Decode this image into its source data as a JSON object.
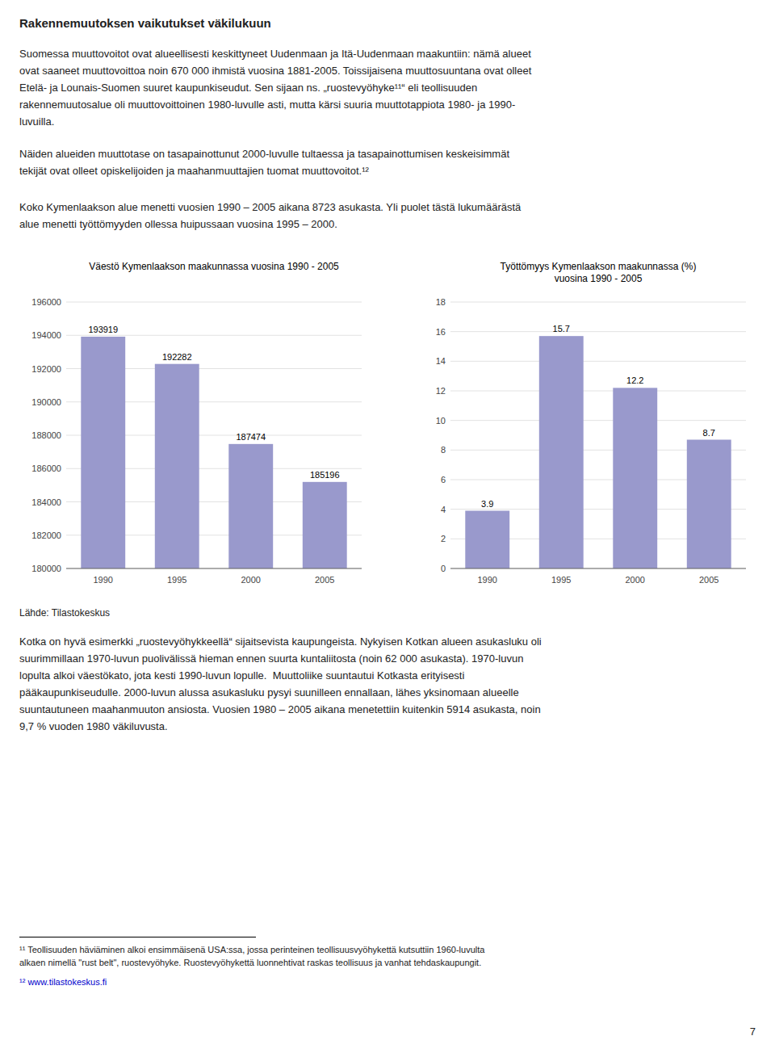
{
  "page_title": "Rakennemuutoksen vaikutukset väkilukuun",
  "paragraphs": [
    [
      "Suomessa muuttovoitot ovat alueellisesti keskittyneet Uudenmaan ja Itä-Uudenmaan maakuntiin: nämä alueet",
      "ovat saaneet muuttovoittoa noin 670 000 ihmistä vuosina 1881-2005. Toissijaisena muuttosuuntana ovat olleet",
      "Etelä- ja Lounais-Suomen suuret kaupunkiseudut. Sen sijaan ns. „ruostevyöhyke¹¹“ eli teollisuuden",
      "rakennemuutosalue oli muuttovoittoinen 1980-luvulle asti, mutta kärsi suuria muuttotappiota 1980- ja 1990-",
      "luvuilla."
    ],
    [
      "Näiden alueiden muuttotase on tasapainottunut 2000-luvulle tultaessa ja tasapainottumisen keskeisimmät",
      "tekijät ovat olleet opiskelijoiden ja maahanmuuttajien tuomat muuttovoitot.¹²"
    ],
    [
      "Koko Kymenlaakson alue menetti vuosien 1990 – 2005 aikana 8723 asukasta. Yli puolet tästä lukumäärästä",
      "alue menetti työttömyyden ollessa huipussaan vuosina 1995 – 2000."
    ],
    [
      "Kotka on hyvä esimerkki „ruostevyöhykkeellä“ sijaitsevista kaupungeista. Nykyisen Kotkan alueen asukasluku oli",
      "suurimmillaan 1970-luvun puolivälissä hieman ennen suurta kuntaliitosta (noin 62 000 asukasta). 1970-luvun",
      "lopulta alkoi väestökato, jota kesti 1990-luvun lopulle.  Muuttoliike suuntautui Kotkasta erityisesti",
      "pääkaupunkiseudulle. 2000-luvun alussa asukasluku pysyi suunilleen ennallaan, lähes yksinomaan alueelle",
      "suuntautuneen maahanmuuton ansiosta. Vuosien 1980 – 2005 aikana menetettiin kuitenkin 5914 asukasta, noin",
      "9,7 % vuoden 1980 väkiluvusta."
    ]
  ],
  "source": "Lähde: Tilastokeskus",
  "footnotes": [
    [
      "¹¹ Teollisuuden häviäminen alkoi ensimmäisenä USA:ssa, jossa perinteinen teollisuusvyöhykettä kutsuttiin 1960-luvulta",
      "alkaen nimellä \"rust belt\", ruostevyöhyke. Ruostevyöhykettä luonnehtivat raskas teollisuus ja vanhat tehdaskaupungit."
    ],
    [
      "¹² www.tilastokeskus.fi"
    ]
  ],
  "page_number": "7",
  "chart_data": [
    {
      "type": "bar",
      "title": "Väestö Kymenlaakson maakunnassa vuosina 1990 - 2005",
      "categories": [
        "1990",
        "1995",
        "2000",
        "2005"
      ],
      "values": [
        193919,
        192282,
        187474,
        185196
      ],
      "color": "#9999cc",
      "ylim": [
        180000,
        196000
      ],
      "yticks": [
        180000,
        182000,
        184000,
        186000,
        188000,
        190000,
        192000,
        194000,
        196000
      ],
      "grid": true,
      "data_labels": true
    },
    {
      "type": "bar",
      "title": "Työttömyys Kymenlaakson maakunnassa (%)\nvuosina 1990 - 2005",
      "categories": [
        "1990",
        "1995",
        "2000",
        "2005"
      ],
      "values": [
        3.9,
        15.7,
        12.2,
        8.7
      ],
      "color": "#9999cc",
      "ylim": [
        0,
        18
      ],
      "yticks": [
        0,
        2,
        4,
        6,
        8,
        10,
        12,
        14,
        16,
        18
      ],
      "grid": true,
      "data_labels": true
    }
  ]
}
